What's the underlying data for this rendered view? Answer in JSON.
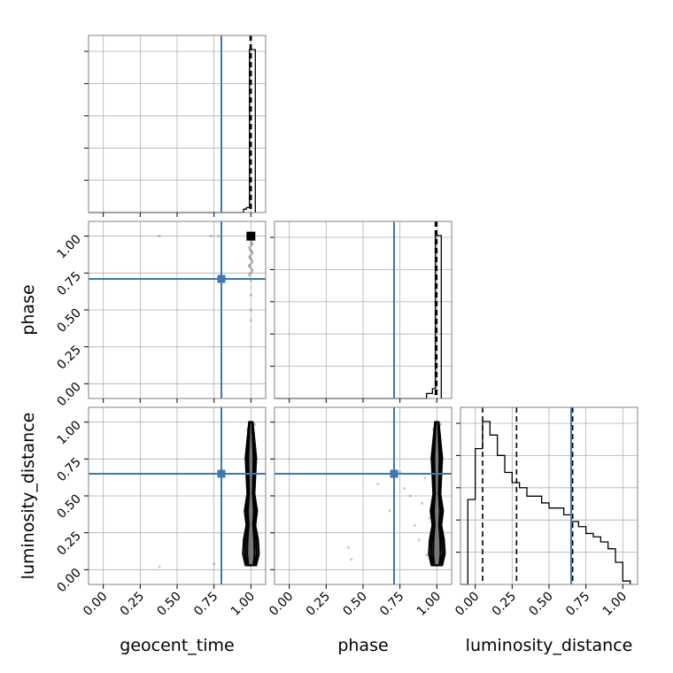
{
  "chart_data": {
    "type": "corner",
    "parameters": [
      "geocent_time",
      "phase",
      "luminosity_distance"
    ],
    "axis_range": [
      -0.1,
      1.1
    ],
    "ticks": [
      0.0,
      0.25,
      0.5,
      0.75,
      1.0
    ],
    "tick_labels": [
      "0.00",
      "0.25",
      "0.50",
      "0.75",
      "1.00"
    ],
    "grid": true,
    "colors": {
      "truth": "#3d78b0",
      "hist": "#000000",
      "grid": "#b0b0b0",
      "frame": "#808080"
    },
    "truths": {
      "geocent_time": 0.8,
      "phase": 0.71,
      "luminosity_distance": 0.65
    },
    "histograms": {
      "geocent_time": {
        "edges": [
          0.95,
          0.97,
          0.99,
          1.01,
          1.03
        ],
        "counts": [
          0.01,
          0.02,
          1.0,
          1.0
        ],
        "quantiles": [
          0.995,
          0.999,
          1.002
        ]
      },
      "phase": {
        "edges": [
          0.93,
          0.97,
          0.99,
          1.01,
          1.03
        ],
        "counts": [
          0.02,
          0.05,
          1.0,
          1.0
        ],
        "quantiles": [
          0.99,
          0.997,
          1.0
        ]
      },
      "luminosity_distance": {
        "edges": [
          -0.05,
          0.0,
          0.05,
          0.1,
          0.15,
          0.2,
          0.25,
          0.3,
          0.35,
          0.4,
          0.45,
          0.5,
          0.55,
          0.6,
          0.65,
          0.7,
          0.75,
          0.8,
          0.85,
          0.9,
          0.95,
          1.0,
          1.05
        ],
        "counts": [
          0.49,
          0.79,
          0.95,
          0.87,
          0.75,
          0.65,
          0.59,
          0.56,
          0.51,
          0.51,
          0.47,
          0.44,
          0.44,
          0.4,
          0.36,
          0.33,
          0.29,
          0.27,
          0.24,
          0.2,
          0.12,
          0.01
        ],
        "quantiles": [
          0.05,
          0.28,
          0.66
        ]
      }
    },
    "scatter": {
      "phase_vs_geocent_time": [
        [
          1.0,
          1.0
        ],
        [
          0.99,
          0.98
        ],
        [
          1.0,
          0.95
        ],
        [
          1.0,
          0.9
        ],
        [
          1.0,
          0.85
        ],
        [
          0.99,
          0.8
        ],
        [
          1.0,
          0.7
        ],
        [
          1.0,
          0.6
        ],
        [
          1.0,
          0.5
        ],
        [
          1.0,
          0.43
        ],
        [
          0.38,
          1.0
        ],
        [
          0.73,
          1.0
        ],
        [
          0.78,
          1.0
        ]
      ],
      "luminosity_distance_vs_geocent_time": [
        [
          0.38,
          0.02
        ],
        [
          0.75,
          0.04
        ],
        [
          1.0,
          1.0
        ],
        [
          1.0,
          0.9
        ],
        [
          1.0,
          0.8
        ],
        [
          1.0,
          0.7
        ],
        [
          1.0,
          0.6
        ],
        [
          0.99,
          0.5
        ],
        [
          1.0,
          0.4
        ],
        [
          1.0,
          0.3
        ],
        [
          0.99,
          0.2
        ],
        [
          1.0,
          0.1
        ],
        [
          1.0,
          0.05
        ]
      ],
      "luminosity_distance_vs_phase": [
        [
          0.75,
          0.66
        ],
        [
          0.6,
          0.58
        ],
        [
          0.78,
          0.55
        ],
        [
          0.82,
          0.5
        ],
        [
          0.68,
          0.4
        ],
        [
          0.42,
          0.07
        ],
        [
          0.4,
          0.15
        ],
        [
          0.85,
          0.3
        ],
        [
          0.88,
          0.2
        ],
        [
          0.9,
          0.45
        ],
        [
          0.92,
          0.62
        ],
        [
          0.95,
          0.35
        ],
        [
          0.97,
          0.15
        ],
        [
          0.93,
          0.1
        ],
        [
          1.0,
          0.9
        ],
        [
          0.98,
          0.75
        ],
        [
          1.0,
          0.05
        ]
      ]
    },
    "contours": {
      "luminosity_distance_vs_geocent_time": {
        "x": 1.0,
        "y_range": [
          0.03,
          1.0
        ]
      },
      "luminosity_distance_vs_phase": {
        "x": 1.0,
        "y_range": [
          0.03,
          1.0
        ]
      }
    }
  }
}
